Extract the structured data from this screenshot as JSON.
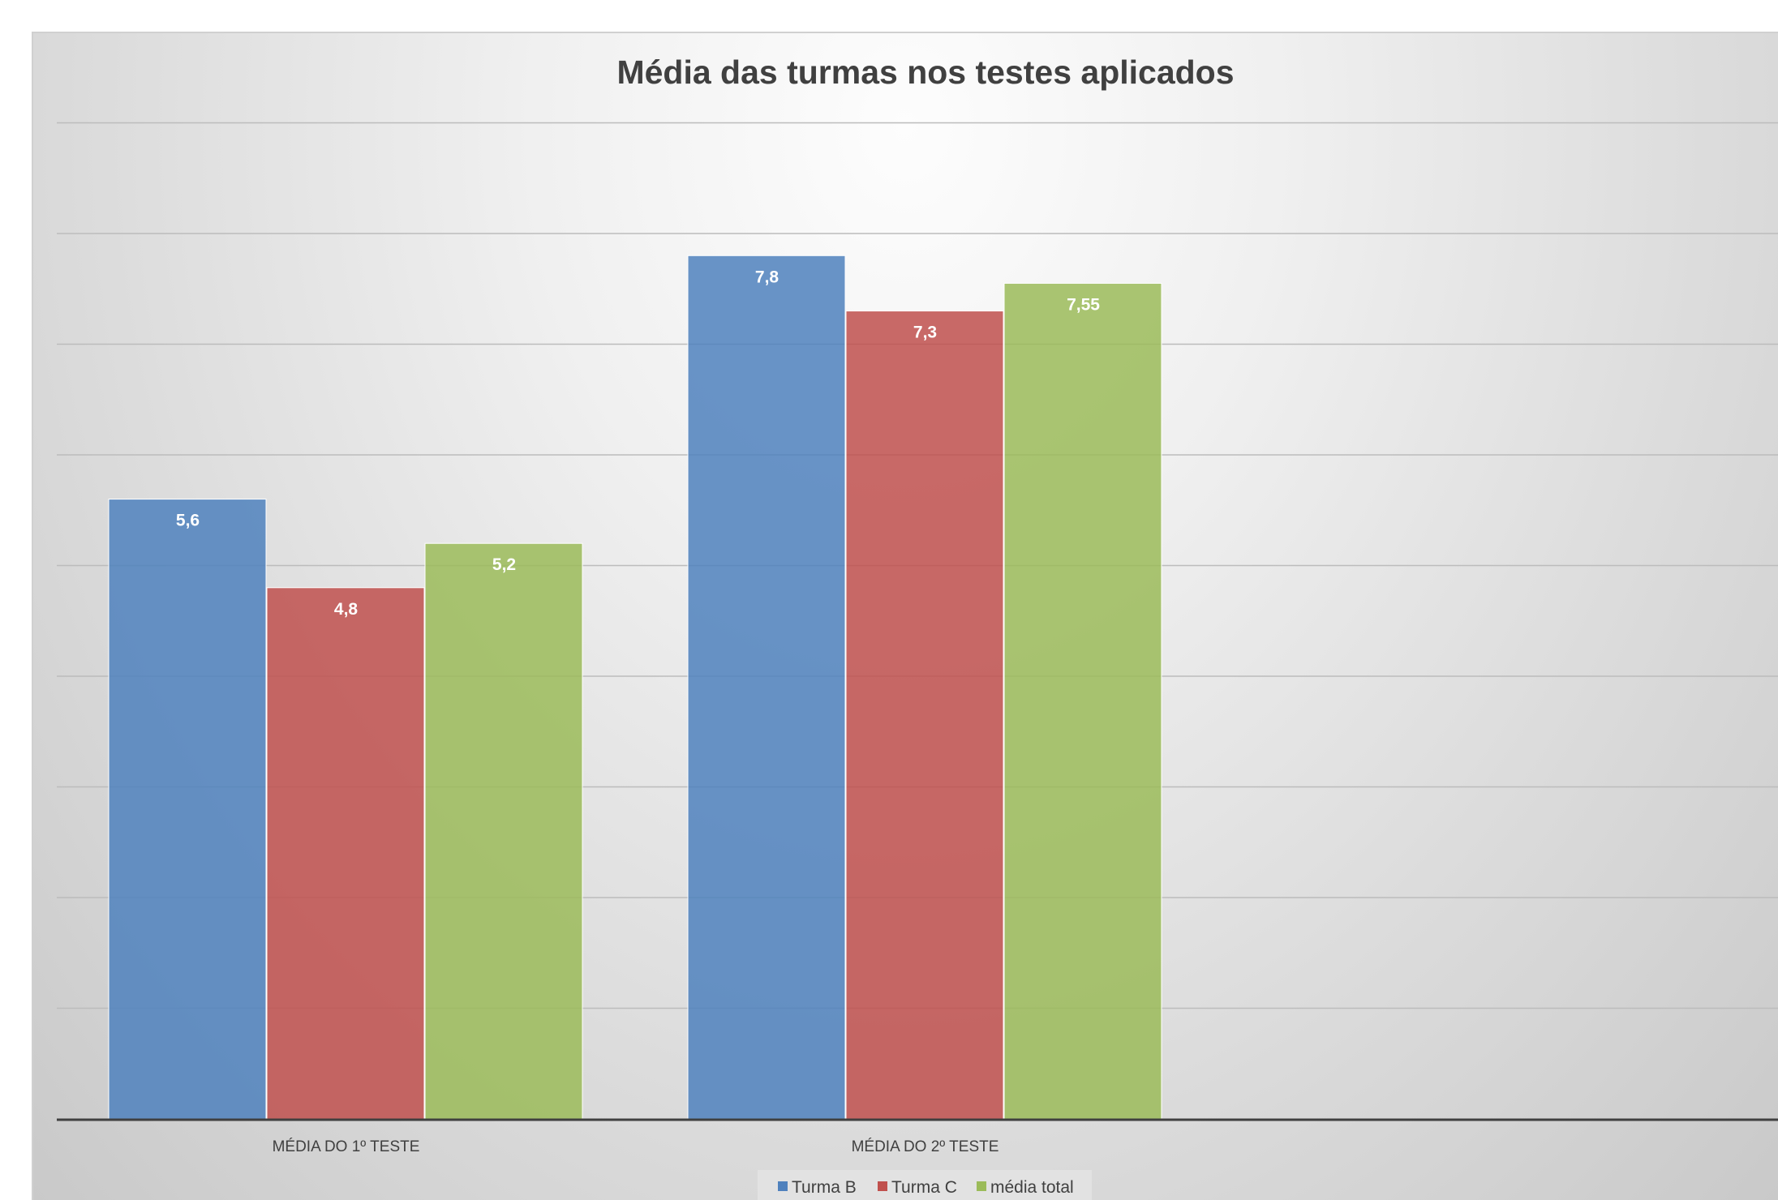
{
  "chart_data": {
    "type": "bar",
    "title": "Média das turmas nos testes aplicados",
    "categories": [
      "MÉDIA DO 1º TESTE",
      "MÉDIA DO 2º TESTE"
    ],
    "series": [
      {
        "name": "Turma B",
        "values": [
          5.6,
          7.8
        ],
        "labels": [
          "5,6",
          "7,8"
        ],
        "color": "#4f81bd"
      },
      {
        "name": "Turma C",
        "values": [
          4.8,
          7.3
        ],
        "labels": [
          "4,8",
          "7,3"
        ],
        "color": "#c0504d"
      },
      {
        "name": "média total",
        "values": [
          5.2,
          7.55
        ],
        "labels": [
          "5,2",
          "7,55"
        ],
        "color": "#9bbb59"
      }
    ],
    "ylim": [
      0,
      9
    ],
    "grid": true,
    "y_axis_labels_visible": false,
    "legend_position": "bottom"
  }
}
